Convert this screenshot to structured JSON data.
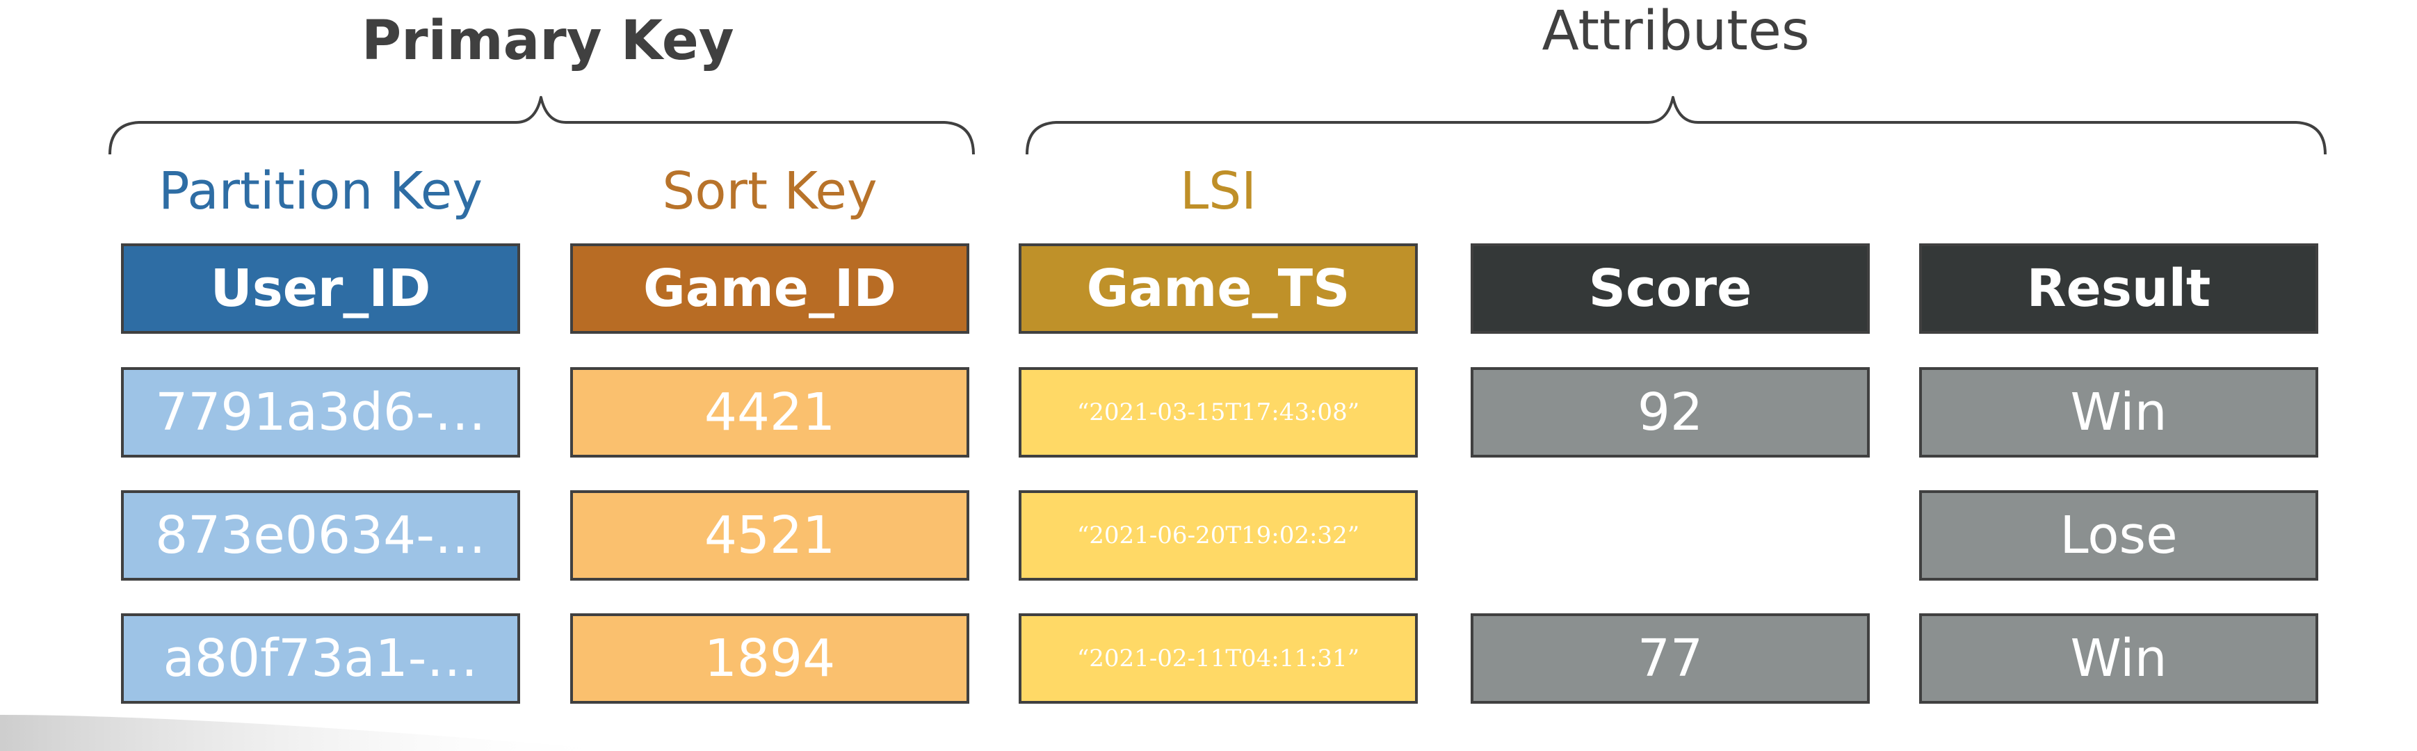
{
  "titles": {
    "primary_key": "Primary Key",
    "attributes": "Attributes"
  },
  "column_labels": {
    "partition_key": "Partition Key",
    "sort_key": "Sort Key",
    "lsi": "LSI"
  },
  "headers": [
    "User_ID",
    "Game_ID",
    "Game_TS",
    "Score",
    "Result"
  ],
  "rows": [
    {
      "user_id": "7791a3d6-…",
      "game_id": "4421",
      "game_ts": "“2021-03-15T17:43:08”",
      "score": "92",
      "result": "Win"
    },
    {
      "user_id": "873e0634-…",
      "game_id": "4521",
      "game_ts": "“2021-06-20T19:02:32”",
      "score": "",
      "result": "Lose"
    },
    {
      "user_id": "a80f73a1-…",
      "game_id": "1894",
      "game_ts": "“2021-02-11T04:11:31”",
      "score": "77",
      "result": "Win"
    }
  ],
  "colors": {
    "partition_key_label": "#2E6DA4",
    "sort_key_label": "#B8732A",
    "lsi_label": "#BF8F28",
    "user_id_header": "#2E6DA4",
    "game_id_header": "#B86C24",
    "game_ts_header": "#BF9129",
    "attr_header": "#343838",
    "user_id_cell": "#9DC3E6",
    "game_id_cell": "#FAC06E",
    "game_ts_cell": "#FFD966",
    "attr_cell": "#8B9090"
  }
}
